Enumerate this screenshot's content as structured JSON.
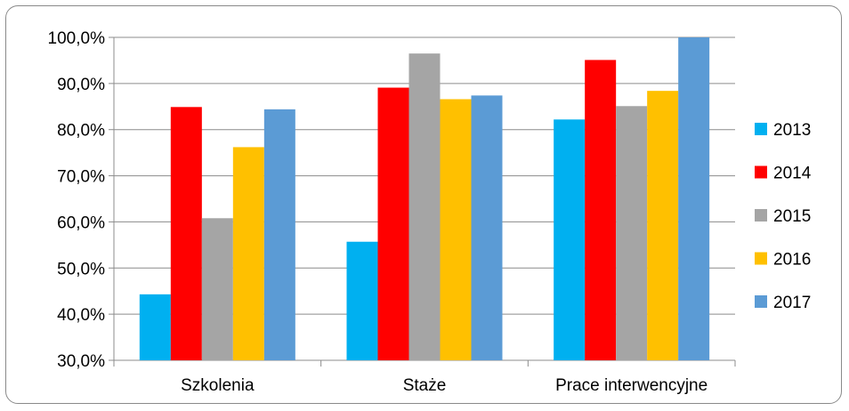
{
  "chart_data": {
    "type": "bar",
    "title": "",
    "xlabel": "",
    "ylabel": "",
    "categories": [
      "Szkolenia",
      "Staże",
      "Prace interwencyjne"
    ],
    "series": [
      {
        "name": "2013",
        "color": "#00b0f0",
        "values": [
          44.3,
          55.7,
          82.2
        ]
      },
      {
        "name": "2014",
        "color": "#ff0000",
        "values": [
          84.9,
          89.1,
          95.1
        ]
      },
      {
        "name": "2015",
        "color": "#a5a5a5",
        "values": [
          60.8,
          96.5,
          85.1
        ]
      },
      {
        "name": "2016",
        "color": "#ffc000",
        "values": [
          76.2,
          86.6,
          88.4
        ]
      },
      {
        "name": "2017",
        "color": "#5b9bd5",
        "values": [
          84.4,
          87.4,
          100.0
        ]
      }
    ],
    "ylim": [
      30,
      100
    ],
    "yticks": [
      "30,0%",
      "40,0%",
      "50,0%",
      "60,0%",
      "70,0%",
      "80,0%",
      "90,0%",
      "100,0%"
    ],
    "grid": true,
    "legend_position": "right"
  }
}
